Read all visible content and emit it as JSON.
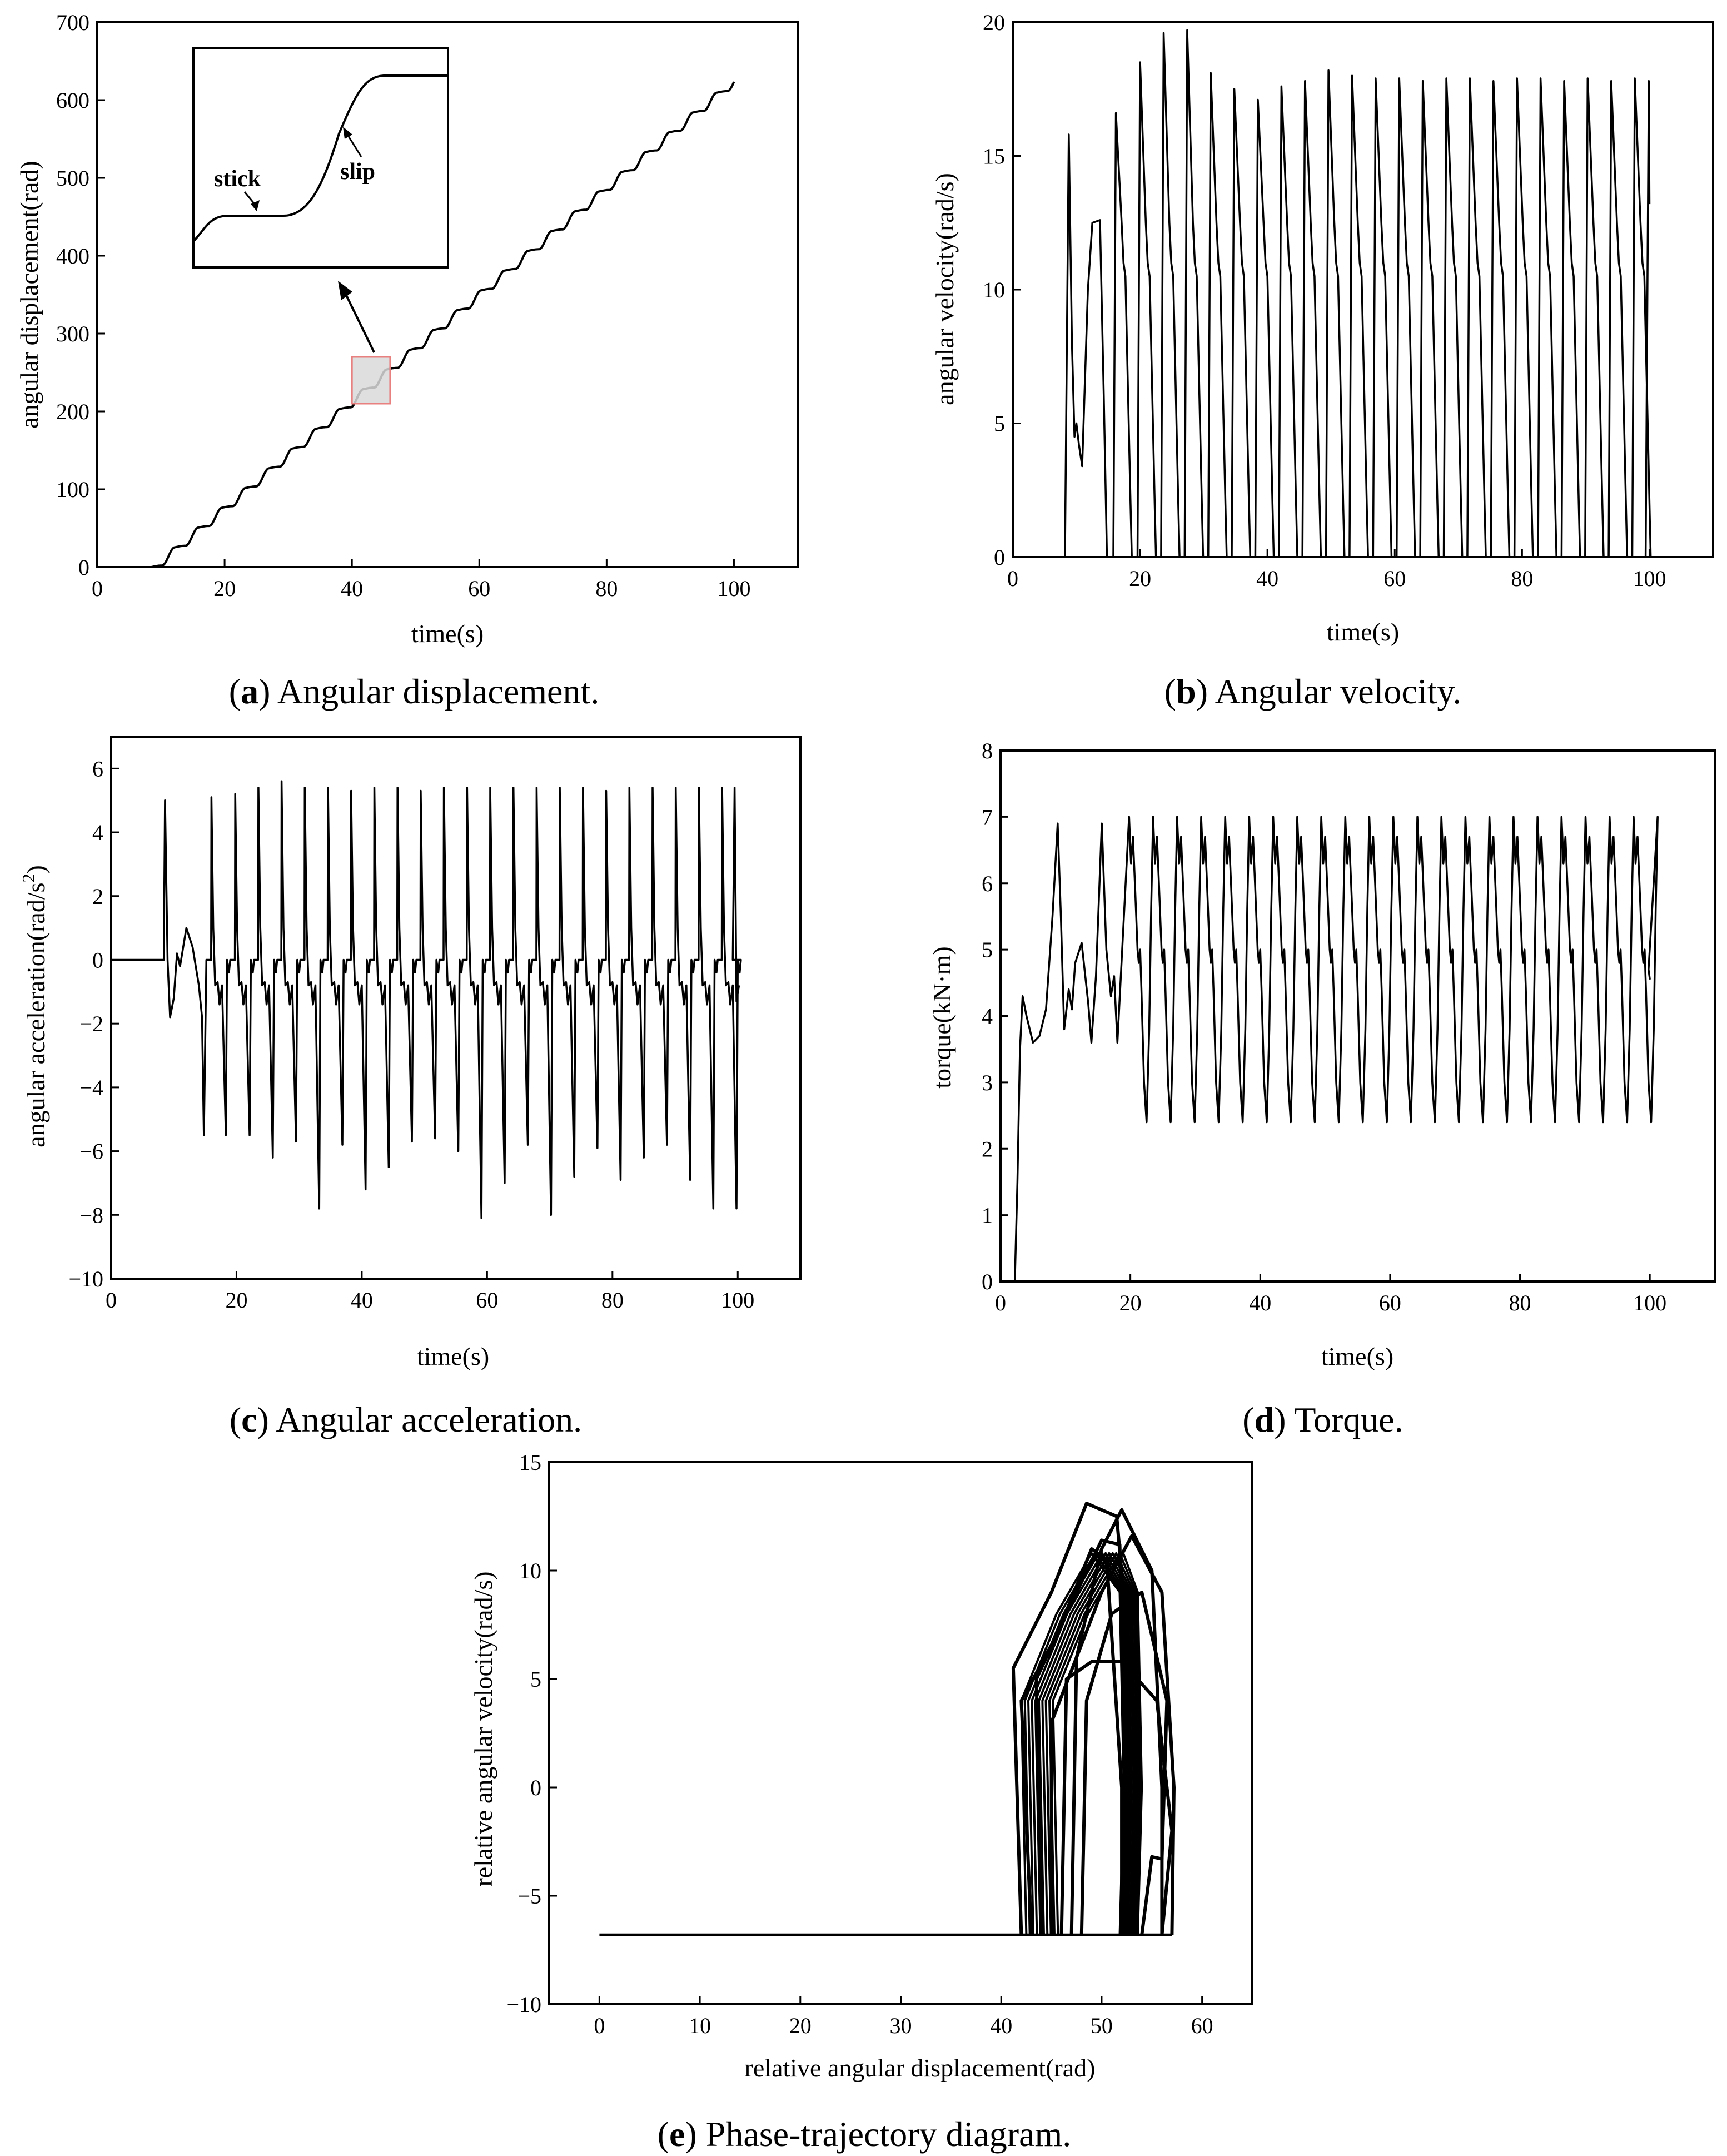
{
  "chart_data": [
    {
      "id": "a",
      "type": "line",
      "caption_letter": "a",
      "caption_text": "Angular displacement.",
      "xlabel": "time(s)",
      "ylabel": "angular displacement(rad)",
      "xlim": [
        0,
        110
      ],
      "ylim": [
        0,
        700
      ],
      "xticks": [
        0,
        20,
        40,
        60,
        80,
        100
      ],
      "yticks": [
        0,
        100,
        200,
        300,
        400,
        500,
        600,
        700
      ],
      "series": [
        {
          "name": "angular displacement",
          "start_time": 8.5,
          "end_time": 100,
          "end_value": 628,
          "stick_slip_period": 3.7,
          "step_height": 25.5
        }
      ],
      "inset": {
        "labels": {
          "stick": "stick",
          "slip": "slip"
        },
        "zoom_window": {
          "x": [
            40,
            46
          ],
          "y": [
            210,
            270
          ]
        }
      }
    },
    {
      "id": "b",
      "type": "line",
      "caption_letter": "b",
      "caption_text": "Angular velocity.",
      "xlabel": "time(s)",
      "ylabel": "angular velocity(rad/s)",
      "xlim": [
        0,
        110
      ],
      "ylim": [
        0,
        20
      ],
      "xticks": [
        0,
        20,
        40,
        60,
        80,
        100
      ],
      "yticks": [
        0,
        5,
        10,
        15,
        20
      ],
      "series": [
        {
          "name": "angular velocity",
          "peak_times": [
            8.8,
            16.2,
            20.0,
            23.7,
            27.4,
            31.1,
            34.8,
            38.5,
            42.2,
            45.9,
            49.6,
            53.3,
            57.0,
            60.7,
            64.4,
            68.1,
            71.8,
            75.5,
            79.2,
            82.9,
            86.6,
            90.3,
            94.0,
            97.7
          ],
          "peak_values": [
            15.8,
            16.6,
            18.5,
            19.6,
            19.7,
            18.1,
            17.5,
            17.1,
            17.6,
            17.8,
            18.2,
            18.0,
            17.9,
            17.9,
            17.8,
            17.9,
            17.9,
            17.8,
            17.9,
            17.9,
            17.8,
            17.9,
            17.8,
            17.9
          ],
          "plateau_before_drop": 11.0,
          "end_time": 100,
          "end_value": 13.2
        }
      ]
    },
    {
      "id": "c",
      "type": "line",
      "caption_letter": "c",
      "caption_text": "Angular acceleration.",
      "xlabel": "time(s)",
      "ylabel_main": "angular acceleration(rad/s",
      "ylabel_sup": "2",
      "ylabel_end": ")",
      "xlim": [
        0,
        110
      ],
      "ylim": [
        -10,
        7
      ],
      "xticks": [
        0,
        20,
        40,
        60,
        80,
        100
      ],
      "yticks": [
        -10,
        -8,
        -6,
        -4,
        -2,
        0,
        2,
        4,
        6
      ],
      "ytick_labels": [
        "−10",
        "−8",
        "−6",
        "−4",
        "−2",
        "0",
        "2",
        "4",
        "6"
      ],
      "series": [
        {
          "name": "angular acceleration",
          "spike_times": [
            8.6,
            16.0,
            19.8,
            23.5,
            27.2,
            30.9,
            34.6,
            38.3,
            42.0,
            45.7,
            49.4,
            53.1,
            56.8,
            60.5,
            64.2,
            67.9,
            71.6,
            75.3,
            79.0,
            82.7,
            86.4,
            90.1,
            93.8,
            97.5,
            99.5
          ],
          "positive_peaks": [
            5.0,
            5.1,
            5.2,
            5.4,
            5.6,
            5.4,
            5.4,
            5.3,
            5.4,
            5.4,
            5.3,
            5.4,
            5.4,
            5.4,
            5.4,
            5.4,
            5.4,
            5.4,
            5.3,
            5.4,
            5.4,
            5.4,
            5.4,
            5.4,
            5.4
          ],
          "negative_peaks": [
            -1.8,
            -5.5,
            -5.5,
            -6.2,
            -5.7,
            -7.8,
            -5.8,
            -7.2,
            -6.5,
            -5.7,
            -5.6,
            -6.0,
            -8.1,
            -7.0,
            -5.8,
            -8.0,
            -6.8,
            -5.9,
            -6.9,
            -6.2,
            -5.8,
            -6.9,
            -7.8,
            -7.8,
            -1.3
          ]
        }
      ]
    },
    {
      "id": "d",
      "type": "line",
      "caption_letter": "d",
      "caption_text": "Torque.",
      "xlabel": "time(s)",
      "ylabel": "torque(kN·m)",
      "xlim": [
        0,
        110
      ],
      "ylim": [
        0,
        8
      ],
      "xticks": [
        0,
        20,
        40,
        60,
        80,
        100
      ],
      "yticks": [
        0,
        1,
        2,
        3,
        4,
        5,
        6,
        7,
        8
      ],
      "series": [
        {
          "name": "torque",
          "initial_rise": {
            "from": [
              2.2,
              0
            ],
            "to": [
              3.4,
              4.3
            ]
          },
          "cycle_max": 7.0,
          "cycle_min": 2.4,
          "cycle_period": 3.7,
          "end_time": 100,
          "end_value": 4.55
        }
      ]
    },
    {
      "id": "e",
      "type": "line",
      "caption_letter": "e",
      "caption_text": "Phase-trajectory diagram.",
      "xlabel": "relative angular displacement(rad)",
      "ylabel": "relative angular velocity(rad/s)",
      "xlim": [
        -5,
        65
      ],
      "ylim": [
        -10,
        15
      ],
      "xticks": [
        0,
        10,
        20,
        30,
        40,
        50,
        60
      ],
      "yticks": [
        -10,
        -5,
        0,
        5,
        10,
        15
      ],
      "ytick_labels": [
        "−10",
        "−5",
        "0",
        "5",
        "10",
        "15"
      ],
      "series": [
        {
          "name": "phase trajectory",
          "stick_velocity": -6.8,
          "stick_range": [
            0,
            57
          ],
          "loops": [
            [
              [
                42,
                -6.8
              ],
              [
                41.2,
                5.5
              ],
              [
                45,
                9
              ],
              [
                48.5,
                13.1
              ],
              [
                51.5,
                12.5
              ],
              [
                53.5,
                2
              ],
              [
                53,
                -6.8
              ]
            ],
            [
              [
                43,
                -6.8
              ],
              [
                42,
                4
              ],
              [
                45.5,
                7
              ],
              [
                49,
                11
              ],
              [
                50.5,
                10.5
              ],
              [
                52,
                0
              ],
              [
                52,
                -6.8
              ]
            ],
            [
              [
                44,
                -6.8
              ],
              [
                43.5,
                5
              ],
              [
                47,
                8.5
              ],
              [
                50,
                11.4
              ],
              [
                51.8,
                11.2
              ],
              [
                52.5,
                0
              ],
              [
                52.5,
                -6.8
              ]
            ],
            [
              [
                45,
                -6.8
              ],
              [
                45,
                3
              ],
              [
                47.5,
                6
              ],
              [
                50,
                11
              ],
              [
                52,
                12.8
              ],
              [
                55,
                10
              ],
              [
                56,
                0
              ],
              [
                56,
                -6.8
              ]
            ],
            [
              [
                46,
                -6.8
              ],
              [
                46.5,
                5
              ],
              [
                49,
                5.8
              ],
              [
                52,
                5.8
              ],
              [
                55.5,
                4
              ],
              [
                57,
                -2
              ],
              [
                56,
                -6.8
              ]
            ],
            [
              [
                47,
                -6.8
              ],
              [
                47.5,
                6
              ],
              [
                50,
                9
              ],
              [
                53,
                11.6
              ],
              [
                56,
                9
              ],
              [
                57.2,
                0
              ],
              [
                57,
                -6.8
              ]
            ],
            [
              [
                48,
                -6.8
              ],
              [
                48.5,
                4
              ],
              [
                51,
                8
              ],
              [
                54,
                9
              ],
              [
                56.5,
                4
              ],
              [
                56,
                -3.3
              ],
              [
                55,
                -3.2
              ],
              [
                54,
                -6.8
              ]
            ]
          ]
        }
      ]
    }
  ]
}
